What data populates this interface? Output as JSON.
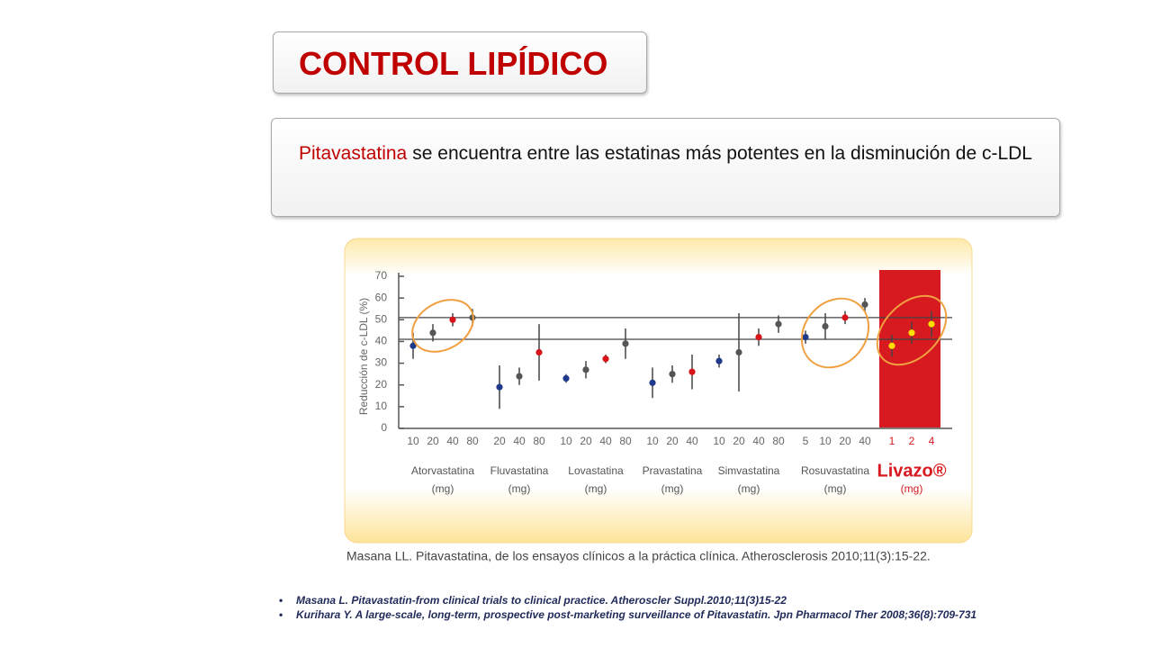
{
  "title": "CONTROL LIPÍDICO",
  "statement": {
    "highlight": "Pitavastatina",
    "text": "se encuentra entre las estatinas más potentes en la disminución de c-LDL"
  },
  "chart_data": {
    "type": "dot-errorbar",
    "y_label": "Reducción de c-LDL (%)",
    "unit_label": "(mg)",
    "ylim": [
      0,
      70
    ],
    "yticks": [
      0,
      10,
      20,
      30,
      40,
      50,
      60,
      70
    ],
    "reference_lines": [
      51,
      41
    ],
    "series": [
      {
        "name": "Atorvastatina",
        "categories": [
          "10",
          "20",
          "40",
          "80"
        ],
        "values": [
          38,
          44,
          50,
          51
        ],
        "errors": [
          6,
          4,
          3,
          4
        ],
        "colors": [
          "#1f3a8a",
          "#555555",
          "#d7141a",
          "#555555"
        ]
      },
      {
        "name": "Fluvastatina",
        "categories": [
          "20",
          "40",
          "80"
        ],
        "values": [
          19,
          24,
          35
        ],
        "errors": [
          10,
          4,
          13
        ],
        "colors": [
          "#1f3a8a",
          "#555555",
          "#d7141a"
        ]
      },
      {
        "name": "Lovastatina",
        "categories": [
          "10",
          "20",
          "40",
          "80"
        ],
        "values": [
          23,
          27,
          32,
          39
        ],
        "errors": [
          2,
          4,
          2,
          7
        ],
        "colors": [
          "#1f3a8a",
          "#555555",
          "#d7141a",
          "#555555"
        ]
      },
      {
        "name": "Pravastatina",
        "categories": [
          "10",
          "20",
          "40"
        ],
        "values": [
          21,
          25,
          26
        ],
        "errors": [
          7,
          4,
          8
        ],
        "colors": [
          "#1f3a8a",
          "#555555",
          "#d7141a"
        ]
      },
      {
        "name": "Simvastatina",
        "categories": [
          "10",
          "20",
          "40",
          "80"
        ],
        "values": [
          31,
          35,
          42,
          48
        ],
        "errors": [
          3,
          18,
          4,
          4
        ],
        "colors": [
          "#1f3a8a",
          "#555555",
          "#d7141a",
          "#555555"
        ]
      },
      {
        "name": "Rosuvastatina",
        "categories": [
          "5",
          "10",
          "20",
          "40"
        ],
        "values": [
          42,
          47,
          51,
          57
        ],
        "errors": [
          3,
          6,
          3,
          3
        ],
        "colors": [
          "#1f3a8a",
          "#555555",
          "#d7141a",
          "#555555"
        ]
      },
      {
        "name": "Livazo®",
        "categories": [
          "1",
          "2",
          "4"
        ],
        "values": [
          38,
          44,
          48
        ],
        "errors": [
          5,
          5,
          6
        ],
        "colors": [
          "#ffe000",
          "#ffe000",
          "#ffe000"
        ]
      }
    ]
  },
  "chart_source": "Masana LL. Pitavastatina, de los ensayos clínicos a la práctica clínica. Atherosclerosis 2010;11(3):15-22.",
  "references": [
    "Masana L. Pitavastatin-from clinical trials to clinical practice. Atheroscler Suppl.2010;11(3)15-22",
    "Kurihara Y. A large-scale, long-term, prospective post-marketing surveillance of Pitavastatin. Jpn Pharmacol Ther 2008;36(8):709-731"
  ]
}
